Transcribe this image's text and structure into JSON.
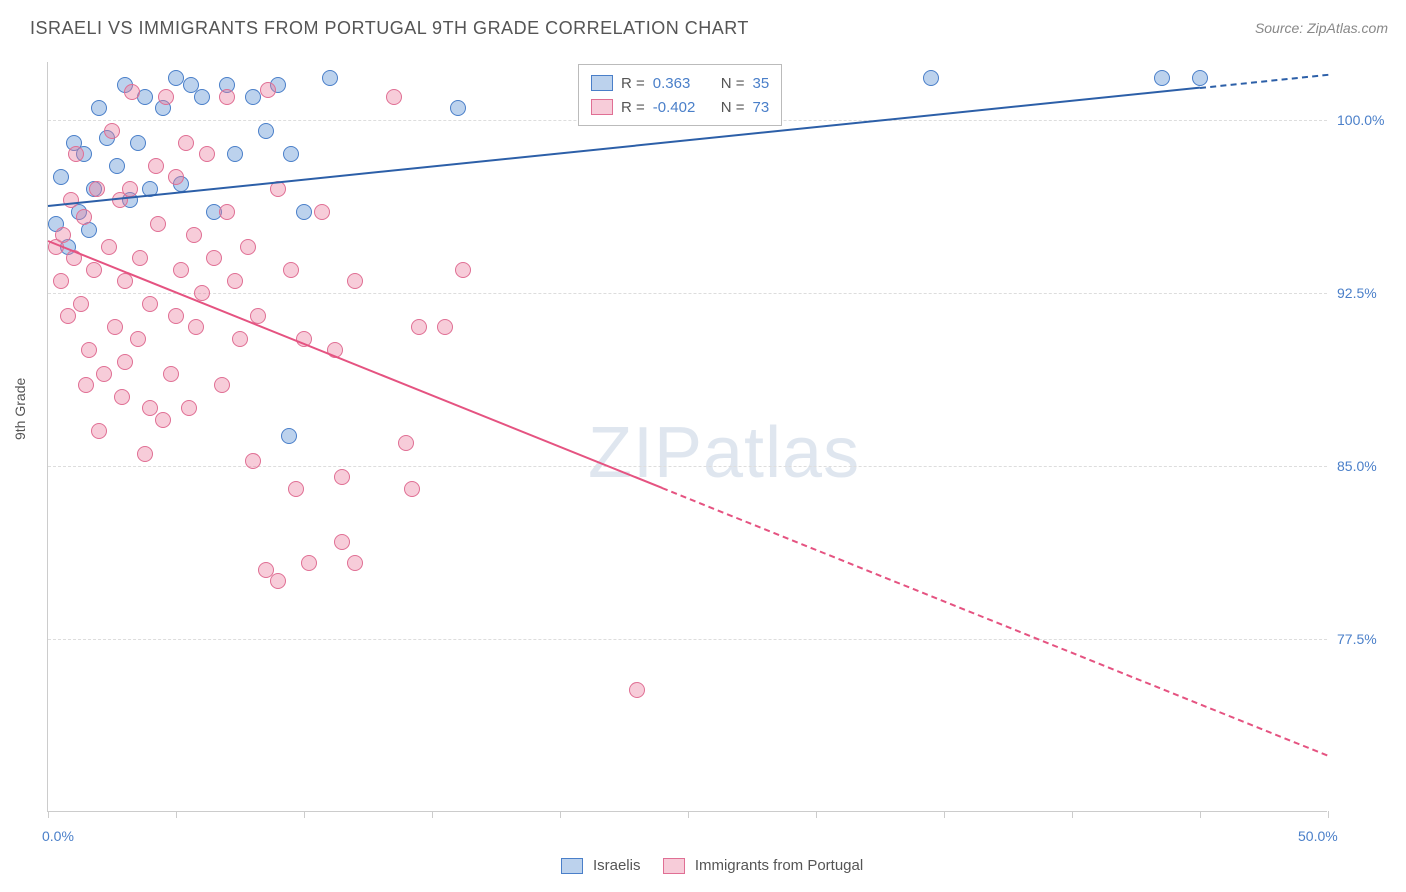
{
  "title": "ISRAELI VS IMMIGRANTS FROM PORTUGAL 9TH GRADE CORRELATION CHART",
  "source": "Source: ZipAtlas.com",
  "ylabel": "9th Grade",
  "watermark_a": "ZIP",
  "watermark_b": "atlas",
  "chart": {
    "type": "scatter",
    "xlim": [
      0,
      50
    ],
    "ylim": [
      70,
      102.5
    ],
    "xticks": [
      0,
      5,
      10,
      15,
      20,
      25,
      30,
      35,
      40,
      45,
      50
    ],
    "xtick_labels": {
      "0": "0.0%",
      "50": "50.0%"
    },
    "yticks": [
      77.5,
      85.0,
      92.5,
      100.0
    ],
    "ytick_labels": [
      "77.5%",
      "85.0%",
      "92.5%",
      "100.0%"
    ],
    "ytick_color": "#4a7fc9",
    "xtick_color": "#4a7fc9",
    "grid_color": "#dddddd",
    "axis_color": "#cccccc",
    "background": "#ffffff",
    "marker_radius": 8,
    "series": [
      {
        "name": "Israelis",
        "marker_fill": "rgba(107,155,214,0.45)",
        "marker_stroke": "#4a7fc9",
        "trend_color": "#2c5fa8",
        "trend": {
          "x1": 0,
          "y1": 96.3,
          "x2": 50,
          "y2": 102.0,
          "solid_until_x": 45
        },
        "legend_r": "0.363",
        "legend_n": "35",
        "points": [
          [
            0.3,
            95.5
          ],
          [
            0.5,
            97.5
          ],
          [
            0.8,
            94.5
          ],
          [
            1.0,
            99.0
          ],
          [
            1.2,
            96.0
          ],
          [
            1.4,
            98.5
          ],
          [
            1.6,
            95.2
          ],
          [
            1.8,
            97.0
          ],
          [
            2.0,
            100.5
          ],
          [
            2.3,
            99.2
          ],
          [
            2.7,
            98.0
          ],
          [
            3.0,
            101.5
          ],
          [
            3.2,
            96.5
          ],
          [
            3.5,
            99.0
          ],
          [
            3.8,
            101.0
          ],
          [
            4.0,
            97.0
          ],
          [
            4.5,
            100.5
          ],
          [
            5.0,
            101.8
          ],
          [
            5.2,
            97.2
          ],
          [
            5.6,
            101.5
          ],
          [
            6.0,
            101.0
          ],
          [
            6.5,
            96.0
          ],
          [
            7.0,
            101.5
          ],
          [
            7.3,
            98.5
          ],
          [
            8.0,
            101.0
          ],
          [
            8.5,
            99.5
          ],
          [
            9.0,
            101.5
          ],
          [
            9.4,
            86.3
          ],
          [
            9.5,
            98.5
          ],
          [
            10.0,
            96.0
          ],
          [
            11.0,
            101.8
          ],
          [
            16.0,
            100.5
          ],
          [
            34.5,
            101.8
          ],
          [
            43.5,
            101.8
          ],
          [
            45.0,
            101.8
          ]
        ]
      },
      {
        "name": "Immigrants from Portugal",
        "marker_fill": "rgba(236,128,160,0.40)",
        "marker_stroke": "#e06f94",
        "trend_color": "#e55381",
        "trend": {
          "x1": 0,
          "y1": 94.8,
          "x2": 50,
          "y2": 72.5,
          "solid_until_x": 24
        },
        "legend_r": "-0.402",
        "legend_n": "73",
        "points": [
          [
            0.3,
            94.5
          ],
          [
            0.5,
            93.0
          ],
          [
            0.6,
            95.0
          ],
          [
            0.8,
            91.5
          ],
          [
            0.9,
            96.5
          ],
          [
            1.0,
            94.0
          ],
          [
            1.1,
            98.5
          ],
          [
            1.3,
            92.0
          ],
          [
            1.4,
            95.8
          ],
          [
            1.5,
            88.5
          ],
          [
            1.6,
            90.0
          ],
          [
            1.8,
            93.5
          ],
          [
            1.9,
            97.0
          ],
          [
            2.0,
            86.5
          ],
          [
            2.2,
            89.0
          ],
          [
            2.4,
            94.5
          ],
          [
            2.5,
            99.5
          ],
          [
            2.6,
            91.0
          ],
          [
            2.8,
            96.5
          ],
          [
            2.9,
            88.0
          ],
          [
            3.0,
            93.0
          ],
          [
            3.0,
            89.5
          ],
          [
            3.2,
            97.0
          ],
          [
            3.3,
            101.2
          ],
          [
            3.5,
            90.5
          ],
          [
            3.6,
            94.0
          ],
          [
            3.8,
            85.5
          ],
          [
            4.0,
            92.0
          ],
          [
            4.0,
            87.5
          ],
          [
            4.2,
            98.0
          ],
          [
            4.3,
            95.5
          ],
          [
            4.5,
            87.0
          ],
          [
            4.6,
            101.0
          ],
          [
            4.8,
            89.0
          ],
          [
            5.0,
            97.5
          ],
          [
            5.0,
            91.5
          ],
          [
            5.2,
            93.5
          ],
          [
            5.4,
            99.0
          ],
          [
            5.5,
            87.5
          ],
          [
            5.7,
            95.0
          ],
          [
            5.8,
            91.0
          ],
          [
            6.0,
            92.5
          ],
          [
            6.2,
            98.5
          ],
          [
            6.5,
            94.0
          ],
          [
            6.8,
            88.5
          ],
          [
            7.0,
            101.0
          ],
          [
            7.0,
            96.0
          ],
          [
            7.3,
            93.0
          ],
          [
            7.5,
            90.5
          ],
          [
            7.8,
            94.5
          ],
          [
            8.0,
            85.2
          ],
          [
            8.2,
            91.5
          ],
          [
            8.5,
            80.5
          ],
          [
            8.6,
            101.3
          ],
          [
            9.0,
            80.0
          ],
          [
            9.0,
            97.0
          ],
          [
            9.5,
            93.5
          ],
          [
            9.7,
            84.0
          ],
          [
            10.0,
            90.5
          ],
          [
            10.2,
            80.8
          ],
          [
            10.7,
            96.0
          ],
          [
            11.2,
            90.0
          ],
          [
            11.5,
            84.5
          ],
          [
            11.5,
            81.7
          ],
          [
            12.0,
            93.0
          ],
          [
            12.0,
            80.8
          ],
          [
            13.5,
            101.0
          ],
          [
            14.0,
            86.0
          ],
          [
            14.2,
            84.0
          ],
          [
            14.5,
            91.0
          ],
          [
            15.5,
            91.0
          ],
          [
            16.2,
            93.5
          ],
          [
            23.0,
            75.3
          ]
        ]
      }
    ]
  },
  "stat_legend": {
    "r_label": "R =",
    "n_label": "N ="
  },
  "bottom_legend": {
    "items": [
      "Israelis",
      "Immigrants from Portugal"
    ]
  }
}
